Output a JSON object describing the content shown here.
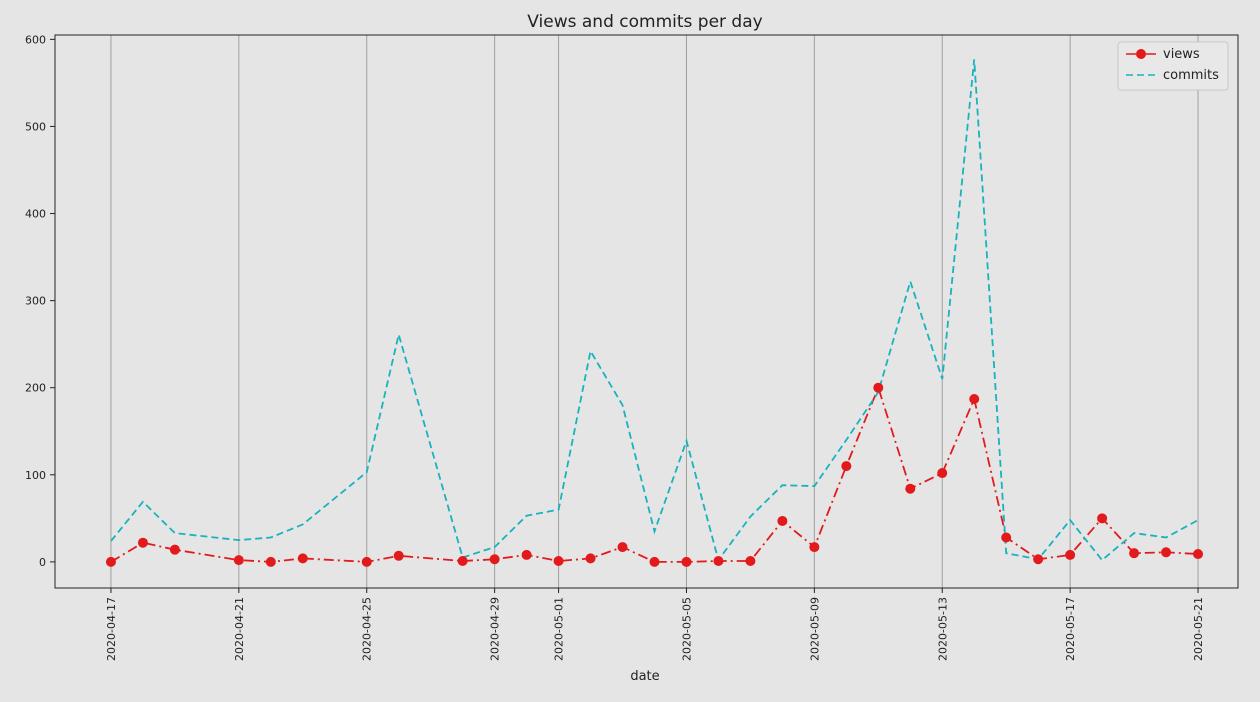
{
  "chart_data": {
    "type": "line",
    "title": "Views and commits per day",
    "xlabel": "date",
    "ylabel": "",
    "x": [
      "2020-04-17",
      "2020-04-18",
      "2020-04-19",
      "2020-04-21",
      "2020-04-22",
      "2020-04-23",
      "2020-04-25",
      "2020-04-26",
      "2020-04-28",
      "2020-04-29",
      "2020-04-30",
      "2020-05-01",
      "2020-05-02",
      "2020-05-03",
      "2020-05-04",
      "2020-05-05",
      "2020-05-06",
      "2020-05-07",
      "2020-05-08",
      "2020-05-09",
      "2020-05-10",
      "2020-05-11",
      "2020-05-12",
      "2020-05-13",
      "2020-05-14",
      "2020-05-15",
      "2020-05-16",
      "2020-05-17",
      "2020-05-18",
      "2020-05-19",
      "2020-05-20",
      "2020-05-21"
    ],
    "series": [
      {
        "name": "views",
        "color": "#e31a1c",
        "line_style": "dash-dot",
        "marker": "circle",
        "values": [
          0,
          22,
          14,
          2,
          0,
          4,
          0,
          7,
          1,
          3,
          8,
          1,
          4,
          17,
          0,
          0,
          1,
          1,
          47,
          17,
          110,
          200,
          84,
          102,
          187,
          28,
          3,
          8,
          50,
          10,
          11,
          9
        ]
      },
      {
        "name": "commits",
        "color": "#17b3be",
        "line_style": "dashed",
        "marker": "none",
        "values": [
          24,
          69,
          33,
          25,
          28,
          43,
          103,
          261,
          5,
          17,
          53,
          60,
          242,
          180,
          35,
          139,
          2,
          52,
          88,
          87,
          140,
          195,
          322,
          210,
          577,
          10,
          3,
          48,
          2,
          33,
          28,
          48
        ]
      }
    ],
    "x_range": [
      "2020-04-15T06:00",
      "2020-05-22T06:00"
    ],
    "ylim": [
      -30,
      605
    ],
    "y_ticks": [
      0,
      100,
      200,
      300,
      400,
      500,
      600
    ],
    "x_ticks": [
      "2020-04-17",
      "2020-04-21",
      "2020-04-25",
      "2020-04-29",
      "2020-05-01",
      "2020-05-05",
      "2020-05-09",
      "2020-05-13",
      "2020-05-17",
      "2020-05-21"
    ],
    "grid": "vertical",
    "legend": "top-right",
    "background_color": "#e5e5e5",
    "grid_color": "#a0a0a0"
  }
}
